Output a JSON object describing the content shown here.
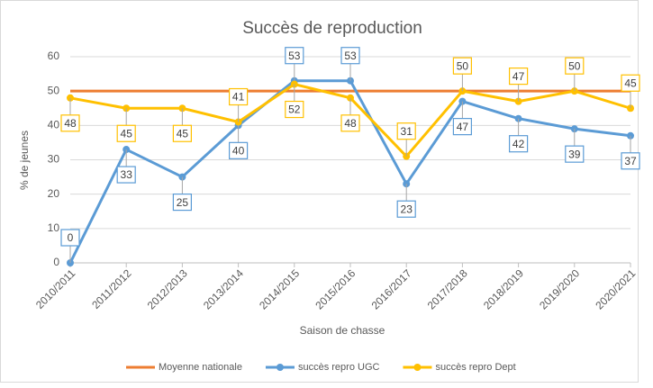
{
  "chart_data": {
    "type": "line",
    "title": "Succès de reproduction",
    "x_label": "Saison de chasse",
    "y_label": "% de jeunes",
    "categories": [
      "2010/2011",
      "2011/2012",
      "2012/2013",
      "2013/2014",
      "2014/2015",
      "2015/2016",
      "2016/2017",
      "2017/2018",
      "2018/2019",
      "2019/2020",
      "2020/2021"
    ],
    "series": [
      {
        "name": "Moyenne nationale",
        "color": "#ED7D31",
        "markers": false,
        "data_labels": false,
        "values": [
          50,
          50,
          50,
          50,
          50,
          50,
          50,
          50,
          50,
          50,
          50
        ]
      },
      {
        "name": "succès repro UGC",
        "color": "#5B9BD5",
        "markers": true,
        "data_labels": true,
        "values": [
          0,
          33,
          25,
          40,
          53,
          53,
          23,
          47,
          42,
          39,
          37
        ]
      },
      {
        "name": "succès repro Dept",
        "color": "#FFC000",
        "markers": true,
        "data_labels": true,
        "values": [
          48,
          45,
          45,
          41,
          52,
          48,
          31,
          50,
          47,
          50,
          45
        ]
      }
    ],
    "ylim": [
      0,
      60
    ],
    "yticks": [
      0,
      10,
      20,
      30,
      40,
      50,
      60
    ],
    "grid": true,
    "legend": "bottom"
  }
}
